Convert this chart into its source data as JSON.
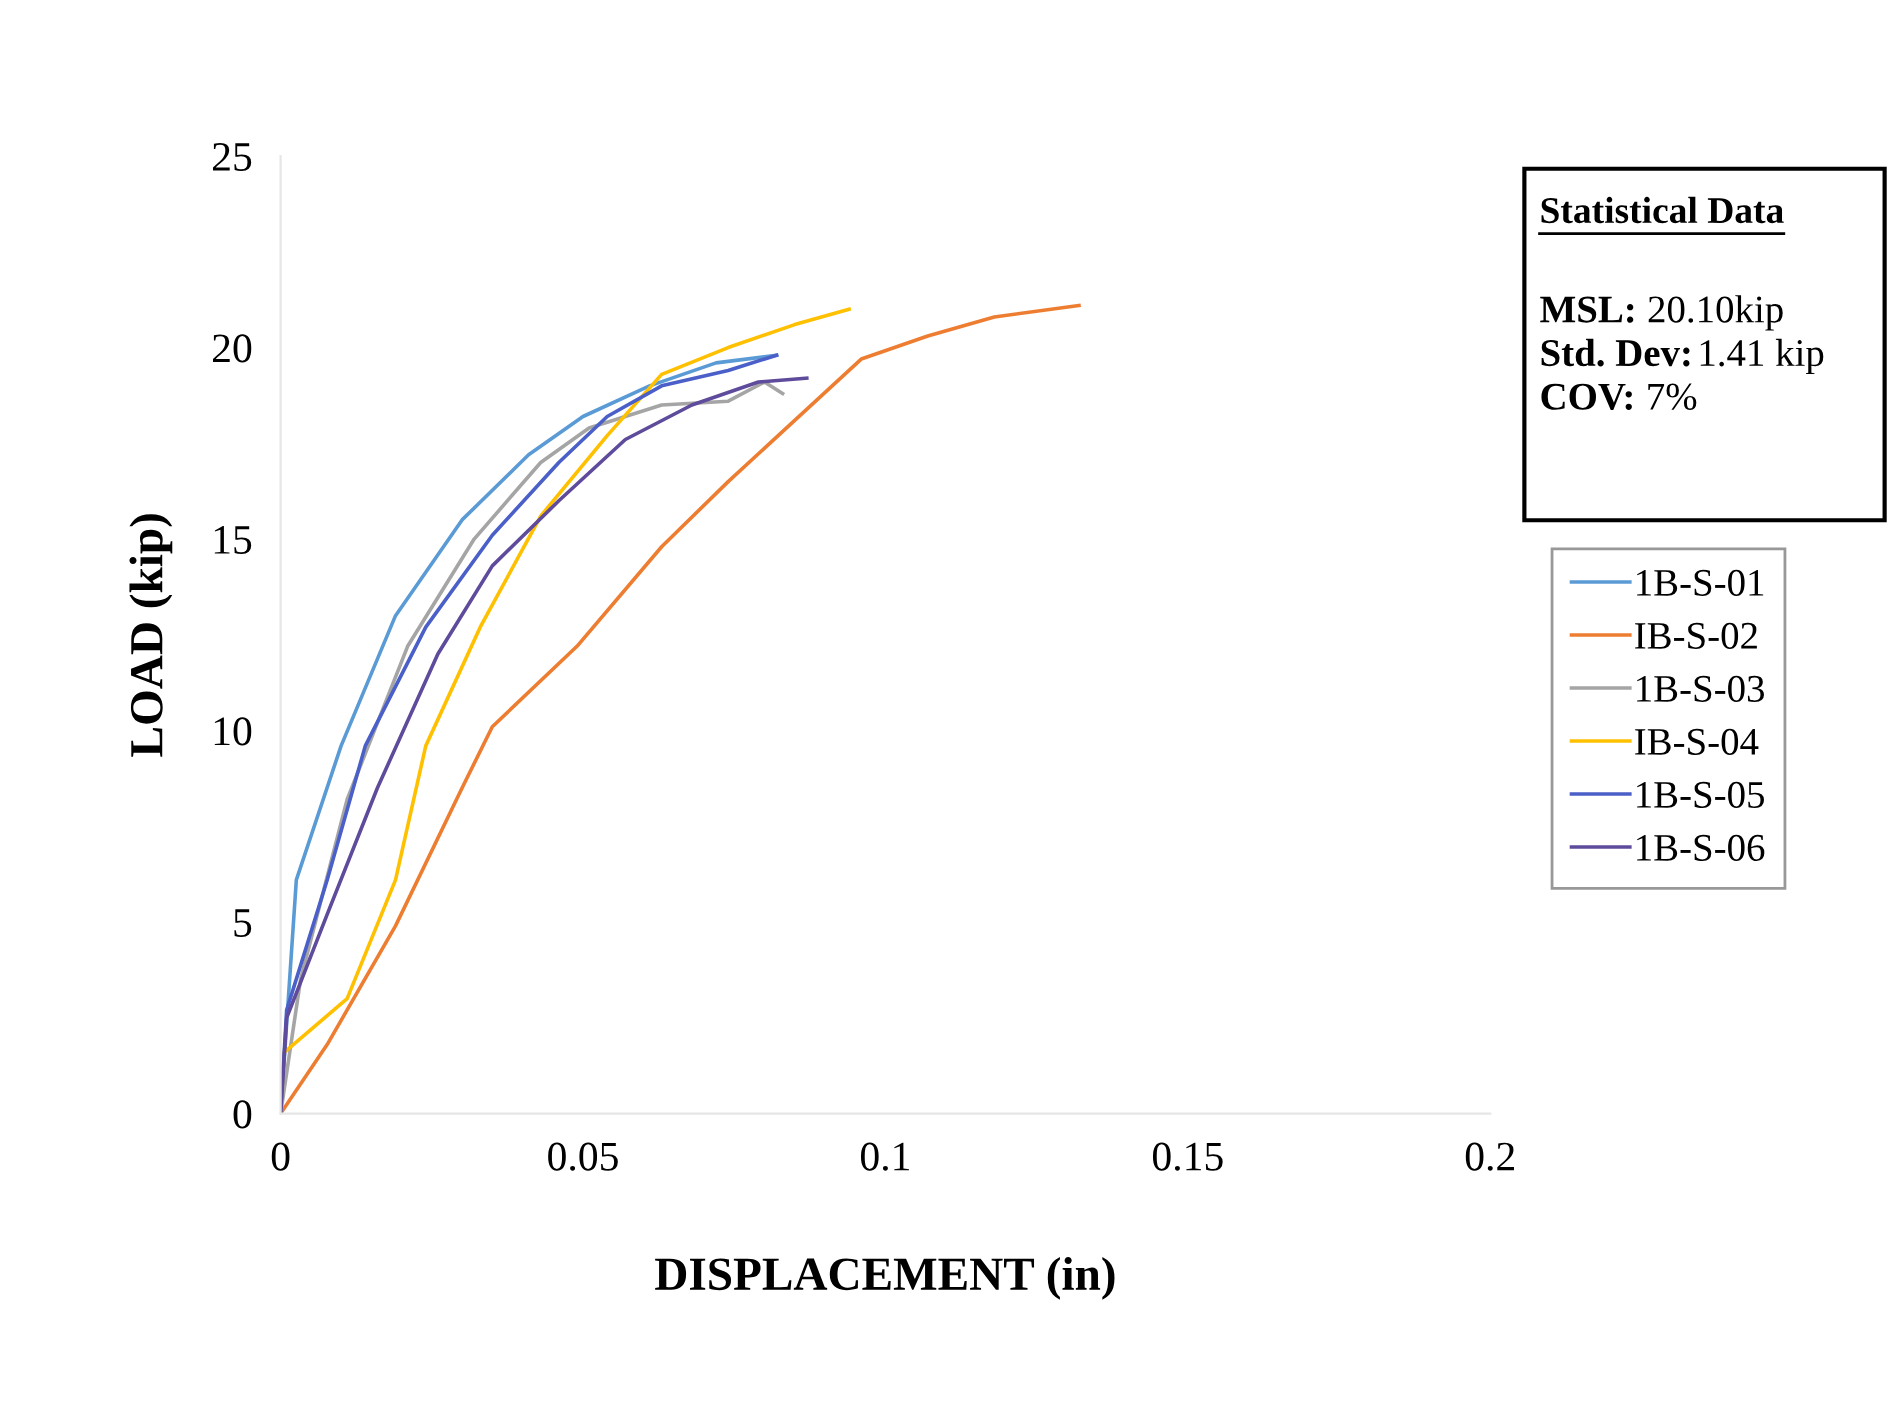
{
  "chart_data": {
    "type": "line",
    "xlabel": "DISPLACEMENT (in)",
    "ylabel": "LOAD (kip)",
    "xlim": [
      0,
      0.2
    ],
    "ylim": [
      0,
      25
    ],
    "xticks": [
      0,
      0.05,
      0.1,
      0.15,
      0.2
    ],
    "yticks": [
      0,
      5,
      10,
      15,
      20,
      25
    ],
    "grid": false,
    "legend": "right",
    "marker": "none",
    "line_style": "solid",
    "annotations": [
      "Statistical Data",
      "MSL: 20.10kip",
      "Std. Dev:1.41 kip",
      "COV: 7%"
    ],
    "series": [
      {
        "name": "1B-S-01",
        "color": "#5b9bd5",
        "x": [
          0,
          0.0026,
          0.01,
          0.019,
          0.03,
          0.041,
          0.05,
          0.061,
          0.072,
          0.082
        ],
        "values": [
          0,
          6.1,
          9.6,
          13.0,
          15.5,
          17.2,
          18.2,
          19.0,
          19.6,
          19.8
        ]
      },
      {
        "name": "IB-S-02",
        "color": "#ed7d31",
        "x": [
          0,
          0.0077,
          0.019,
          0.03,
          0.035,
          0.049,
          0.063,
          0.074,
          0.085,
          0.096,
          0.107,
          0.118,
          0.132
        ],
        "values": [
          0,
          1.8,
          4.9,
          8.5,
          10.1,
          12.2,
          14.8,
          16.5,
          18.1,
          19.7,
          20.3,
          20.8,
          21.1
        ]
      },
      {
        "name": "1B-S-03",
        "color": "#a5a5a5",
        "x": [
          0,
          0.0033,
          0.011,
          0.021,
          0.032,
          0.043,
          0.051,
          0.063,
          0.074,
          0.08,
          0.083
        ],
        "values": [
          0,
          3.5,
          8.2,
          12.2,
          15.0,
          17.0,
          17.9,
          18.5,
          18.6,
          19.1,
          18.8
        ]
      },
      {
        "name": "IB-S-04",
        "color": "#ffc000",
        "x": [
          0,
          0.0006,
          0.011,
          0.019,
          0.024,
          0.033,
          0.043,
          0.054,
          0.063,
          0.074,
          0.085,
          0.094
        ],
        "values": [
          0,
          1.6,
          3.0,
          6.1,
          9.6,
          12.7,
          15.6,
          17.7,
          19.3,
          20.0,
          20.6,
          21.0
        ]
      },
      {
        "name": "1B-S-05",
        "color": "#4a5fc8",
        "x": [
          0,
          0.001,
          0.0077,
          0.014,
          0.024,
          0.035,
          0.046,
          0.054,
          0.063,
          0.074,
          0.082
        ],
        "values": [
          0,
          2.7,
          6.1,
          9.6,
          12.7,
          15.1,
          17.0,
          18.2,
          19.0,
          19.4,
          19.8
        ]
      },
      {
        "name": "1B-S-06",
        "color": "#5e4b9c",
        "x": [
          0,
          0.001,
          0.0077,
          0.016,
          0.026,
          0.035,
          0.046,
          0.057,
          0.068,
          0.079,
          0.087
        ],
        "values": [
          0,
          2.5,
          5.2,
          8.5,
          12.0,
          14.3,
          16.0,
          17.6,
          18.5,
          19.1,
          19.2
        ]
      }
    ]
  }
}
